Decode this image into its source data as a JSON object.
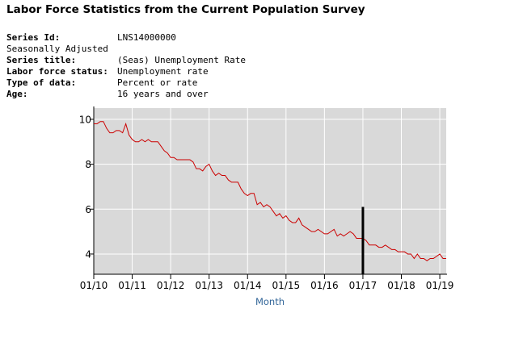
{
  "page": {
    "title": "Labor Force Statistics from the Current Population Survey"
  },
  "series_info": {
    "series_id_label": "Series Id:",
    "series_id_value": "LNS14000000",
    "adjustment": "Seasonally Adjusted",
    "series_title_label": "Series title:",
    "series_title_value": "(Seas) Unemployment Rate",
    "lf_status_label": "Labor force status:",
    "lf_status_value": "Unemployment rate",
    "data_type_label": "Type of data:",
    "data_type_value": "Percent or rate",
    "age_label": "Age:",
    "age_value": "16 years and over"
  },
  "colors": {
    "plot_background": "#d9d9d9",
    "grid": "#ffffff",
    "line": "#cc0000",
    "marker": "#000000",
    "axis_title": "#336699"
  },
  "chart_data": {
    "type": "line",
    "title": "",
    "xlabel": "Month",
    "ylabel": "",
    "x_ticks": [
      "01/10",
      "01/11",
      "01/12",
      "01/13",
      "01/14",
      "01/15",
      "01/16",
      "01/17",
      "01/18",
      "01/19"
    ],
    "y_ticks": [
      4,
      6,
      8,
      10
    ],
    "ylim": [
      3.1,
      10.5
    ],
    "x_start": "2010-01",
    "x_end": "2019-03",
    "grid": true,
    "legend": "none",
    "marker": {
      "date": "2017-01",
      "y_from": 3.1,
      "y_to": 6.1
    },
    "series": [
      {
        "name": "(Seas) Unemployment Rate",
        "values": [
          9.8,
          9.8,
          9.9,
          9.9,
          9.6,
          9.4,
          9.4,
          9.5,
          9.5,
          9.4,
          9.8,
          9.3,
          9.1,
          9.0,
          9.0,
          9.1,
          9.0,
          9.1,
          9.0,
          9.0,
          9.0,
          8.8,
          8.6,
          8.5,
          8.3,
          8.3,
          8.2,
          8.2,
          8.2,
          8.2,
          8.2,
          8.1,
          7.8,
          7.8,
          7.7,
          7.9,
          8.0,
          7.7,
          7.5,
          7.6,
          7.5,
          7.5,
          7.3,
          7.2,
          7.2,
          7.2,
          6.9,
          6.7,
          6.6,
          6.7,
          6.7,
          6.2,
          6.3,
          6.1,
          6.2,
          6.1,
          5.9,
          5.7,
          5.8,
          5.6,
          5.7,
          5.5,
          5.4,
          5.4,
          5.6,
          5.3,
          5.2,
          5.1,
          5.0,
          5.0,
          5.1,
          5.0,
          4.9,
          4.9,
          5.0,
          5.1,
          4.8,
          4.9,
          4.8,
          4.9,
          5.0,
          4.9,
          4.7,
          4.7,
          4.7,
          4.6,
          4.4,
          4.4,
          4.4,
          4.3,
          4.3,
          4.4,
          4.3,
          4.2,
          4.2,
          4.1,
          4.1,
          4.1,
          4.0,
          4.0,
          3.8,
          4.0,
          3.8,
          3.8,
          3.7,
          3.8,
          3.8,
          3.9,
          4.0,
          3.8,
          3.8
        ]
      }
    ]
  }
}
